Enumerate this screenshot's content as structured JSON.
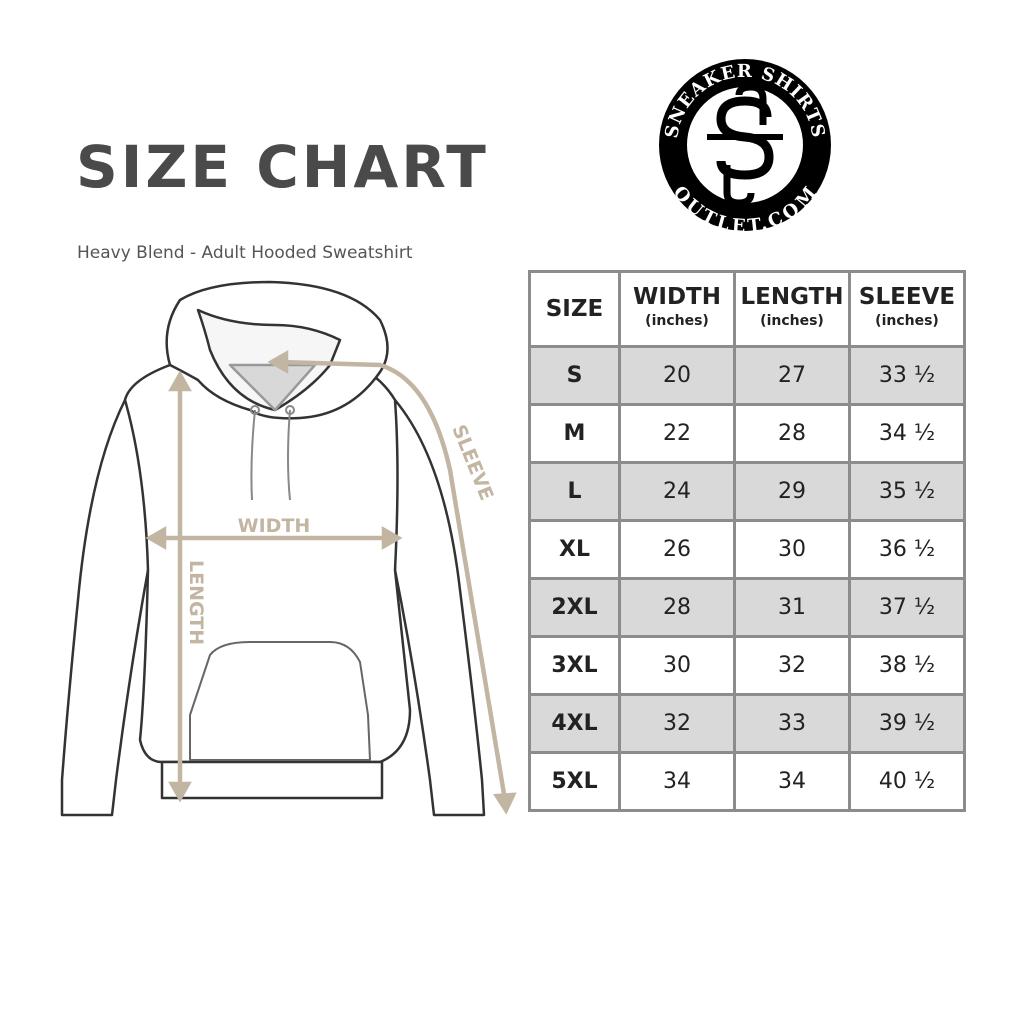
{
  "title": "SIZE CHART",
  "subtitle": "Heavy Blend - Adult Hooded Sweatshirt",
  "logo": {
    "top_text": "SNEAKER SHIRTS",
    "bottom_text": "OUTLET.COM",
    "monogram": "SS"
  },
  "diagram": {
    "width_label": "WIDTH",
    "length_label": "LENGTH",
    "sleeve_label": "SLEEVE",
    "measure_color": "#c2b6a3"
  },
  "table": {
    "headers": [
      {
        "label": "SIZE",
        "unit": ""
      },
      {
        "label": "WIDTH",
        "unit": "(inches)"
      },
      {
        "label": "LENGTH",
        "unit": "(inches)"
      },
      {
        "label": "SLEEVE",
        "unit": "(inches)"
      }
    ],
    "rows": [
      [
        "S",
        "20",
        "27",
        "33 ½"
      ],
      [
        "M",
        "22",
        "28",
        "34 ½"
      ],
      [
        "L",
        "24",
        "29",
        "35 ½"
      ],
      [
        "XL",
        "26",
        "30",
        "36 ½"
      ],
      [
        "2XL",
        "28",
        "31",
        "37 ½"
      ],
      [
        "3XL",
        "30",
        "32",
        "38 ½"
      ],
      [
        "4XL",
        "32",
        "33",
        "39 ½"
      ],
      [
        "5XL",
        "34",
        "34",
        "40 ½"
      ]
    ],
    "stripe_color": "#d9d9d9",
    "border_color": "#8c8c8c"
  }
}
